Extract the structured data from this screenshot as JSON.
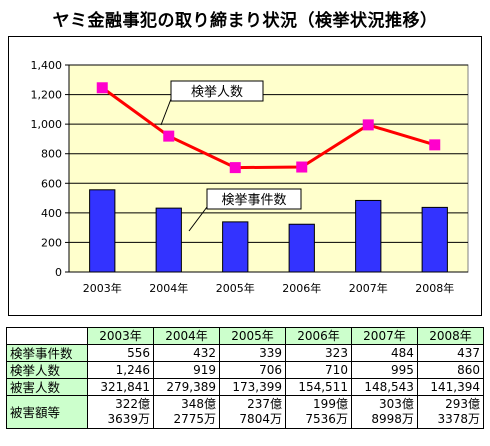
{
  "title": "ヤミ金融事犯の取り締まり状況（検挙状況推移）",
  "chart_data": {
    "type": "bar+line",
    "categories": [
      "2003年",
      "2004年",
      "2005年",
      "2006年",
      "2007年",
      "2008年"
    ],
    "series": [
      {
        "name": "検挙事件数",
        "type": "bar",
        "color": "#3333ff",
        "values": [
          556,
          432,
          339,
          323,
          484,
          437
        ]
      },
      {
        "name": "検挙人数",
        "type": "line",
        "color": "#ff0000",
        "marker_color": "#ff00cc",
        "values": [
          1246,
          919,
          706,
          710,
          995,
          860
        ]
      }
    ],
    "ylim": [
      0,
      1400
    ],
    "yticks": [
      "0",
      "200",
      "400",
      "600",
      "800",
      "1,000",
      "1,200",
      "1,400"
    ],
    "grid": true,
    "plot_background": "#ffffcc"
  },
  "table": {
    "columns": [
      "2003年",
      "2004年",
      "2005年",
      "2006年",
      "2007年",
      "2008年"
    ],
    "rows": [
      {
        "label": "検挙事件数",
        "values": [
          "556",
          "432",
          "339",
          "323",
          "484",
          "437"
        ]
      },
      {
        "label": "検挙人数",
        "values": [
          "1,246",
          "919",
          "706",
          "710",
          "995",
          "860"
        ]
      },
      {
        "label": "被害人数",
        "values": [
          "321,841",
          "279,389",
          "173,399",
          "154,511",
          "148,543",
          "141,394"
        ]
      }
    ],
    "damage_row": {
      "label": "被害額等",
      "values": [
        {
          "line1": "322億",
          "line2": "3639万"
        },
        {
          "line1": "348億",
          "line2": "2775万"
        },
        {
          "line1": "237億",
          "line2": "7804万"
        },
        {
          "line1": "199億",
          "line2": "7536万"
        },
        {
          "line1": "303億",
          "line2": "8998万"
        },
        {
          "line1": "293億",
          "line2": "3378万"
        }
      ]
    }
  }
}
